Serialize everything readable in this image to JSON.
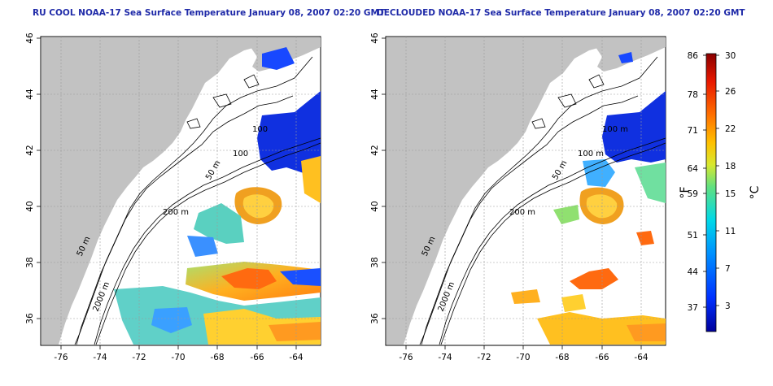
{
  "titles": {
    "left": "RU COOL NOAA-17 Sea Surface Temperature January 08, 2007 02:20 GMT",
    "right": "DECLOUDED NOAA-17 Sea Surface Temperature January 08, 2007 02:20 GMT"
  },
  "axes": {
    "lon_ticks": [
      "-76",
      "-74",
      "-72",
      "-70",
      "-68",
      "-66",
      "-64"
    ],
    "lat_ticks": [
      "36",
      "38",
      "40",
      "42",
      "44",
      "46"
    ]
  },
  "contours": {
    "left": [
      "200 m",
      "100",
      "100",
      "50 m",
      "50 m",
      "2000 m"
    ],
    "right": [
      "200 m",
      "100 m",
      "100 m",
      "50 m",
      "50 m",
      "2000 m"
    ]
  },
  "colorbar": {
    "f_ticks": [
      "86",
      "78",
      "71",
      "64",
      "59",
      "51",
      "44",
      "37"
    ],
    "c_ticks": [
      "30",
      "26",
      "22",
      "18",
      "15",
      "11",
      "7",
      "3"
    ],
    "f_unit": "°F",
    "c_unit": "°C"
  },
  "colors": {
    "land": "#c2c2c2",
    "sea_clear": "#ffffff",
    "grid": "#9a9a9a",
    "contour": "#000000",
    "title": "#1f2aa8"
  }
}
